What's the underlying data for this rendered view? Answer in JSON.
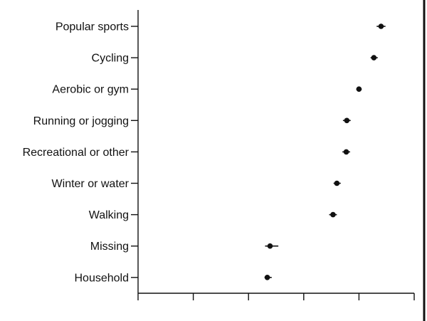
{
  "chart_data": {
    "type": "scatter",
    "subtype": "forest-plot",
    "title": "",
    "xlabel": "",
    "ylabel": "",
    "xlim": [
      0,
      5
    ],
    "xticks": [
      0,
      1,
      2,
      3,
      4,
      5
    ],
    "tick_labels_visible": false,
    "grid": false,
    "legend": "none",
    "colors": {
      "marker": "#111111",
      "axis": "#111111"
    },
    "categories": [
      "Popular sports",
      "Cycling",
      "Aerobic or gym",
      "Running or jogging",
      "Recreational or other",
      "Winter or water",
      "Walking",
      "Missing",
      "Household"
    ],
    "series": [
      {
        "estimate": [
          4.4,
          4.27,
          4.0,
          3.78,
          3.77,
          3.6,
          3.53,
          2.39,
          2.34
        ],
        "ci_low": [
          4.32,
          4.21,
          3.95,
          3.71,
          3.7,
          3.54,
          3.46,
          2.3,
          2.29
        ],
        "ci_high": [
          4.48,
          4.34,
          4.05,
          3.85,
          3.84,
          3.67,
          3.6,
          2.54,
          2.42
        ]
      }
    ]
  }
}
